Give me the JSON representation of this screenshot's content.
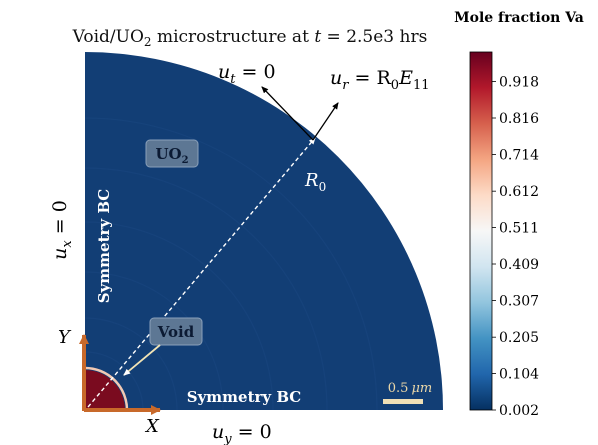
{
  "chart_data": {
    "type": "heatmap",
    "title": "Void/UO₂ microstructure at t = 2.5e3 hrs",
    "title_parts": {
      "prefix": "Void/UO",
      "sub": "2",
      "mid": " microstructure at ",
      "var": "t",
      "suffix": " = 2.5e3 hrs"
    },
    "colorbar": {
      "label": "Mole fraction Va",
      "ticks": [
        0.918,
        0.816,
        0.714,
        0.612,
        0.511,
        0.409,
        0.307,
        0.205,
        0.104,
        0.002
      ],
      "range": [
        0.002,
        1.0
      ],
      "colormap": [
        "#67001f",
        "#b2182b",
        "#d6604d",
        "#f4a582",
        "#fddbc7",
        "#f7f7f7",
        "#d1e5f0",
        "#92c5de",
        "#4393c3",
        "#2166ac",
        "#053061"
      ]
    },
    "regions": {
      "matrix": {
        "label": "UO₂",
        "label_base": "UO",
        "label_sub": "2",
        "value": 0.002
      },
      "void": {
        "label": "Void",
        "value": 1.0
      }
    },
    "boundary_conditions": {
      "left_symmetry": "Symmetry BC",
      "bottom_symmetry": "Symmetry BC",
      "ux": {
        "sym": "u",
        "sub": "x",
        "rhs": " = 0"
      },
      "uy": {
        "sym": "u",
        "sub": "y",
        "rhs": " = 0"
      },
      "ut": {
        "sym": "u",
        "sub": "t",
        "rhs": " = 0"
      },
      "ur": {
        "sym": "u",
        "sub": "r",
        "rhs": " = R",
        "rhs_sub": "0",
        "rhs_tail": "E",
        "rhs_tail_sub": "11"
      }
    },
    "radius_label": {
      "sym": "R",
      "sub": "0"
    },
    "axes": {
      "x": "X",
      "y": "Y"
    },
    "scale_bar": {
      "value": "0.5",
      "unit": "μm"
    }
  },
  "colors": {
    "matrix": "#123e75",
    "void": "#7a0b1f",
    "axis_arrow": "#c8692a",
    "scale_bar": "#efdfb6",
    "label_box": "#5d7794"
  }
}
